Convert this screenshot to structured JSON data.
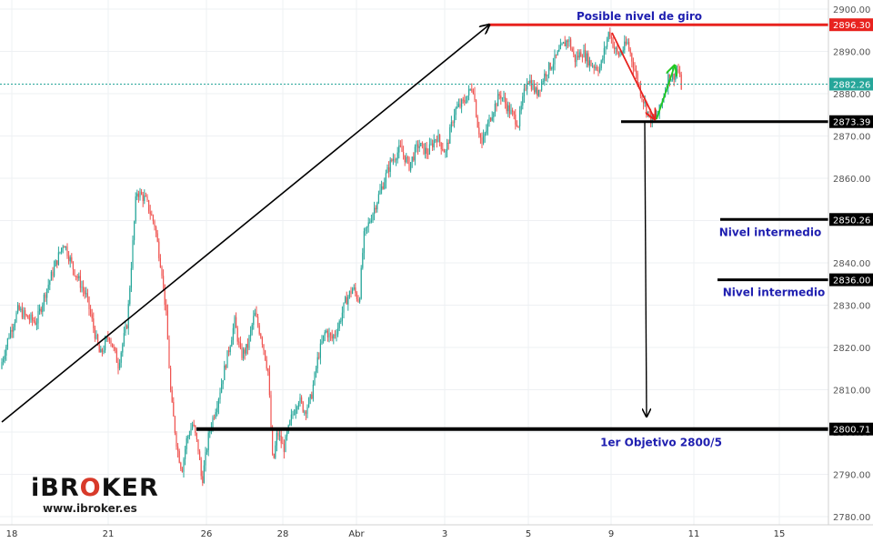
{
  "chart_data": {
    "type": "candlestick",
    "x_ticks": [
      "18",
      "21",
      "26",
      "28",
      "Abr",
      "3",
      "5",
      "9",
      "11",
      "15"
    ],
    "y_ticks": [
      "2900.00",
      "2890.00",
      "2880.00",
      "2870.00",
      "2860.00",
      "2850.00",
      "2840.00",
      "2830.00",
      "2820.00",
      "2810.00",
      "2800.00",
      "2790.00",
      "2780.00"
    ],
    "ylim": [
      2780,
      2900
    ],
    "grid": true,
    "price_series": [
      [
        0,
        2815
      ],
      [
        10,
        2823
      ],
      [
        20,
        2829
      ],
      [
        30,
        2827
      ],
      [
        40,
        2826
      ],
      [
        50,
        2833
      ],
      [
        60,
        2839
      ],
      [
        70,
        2845
      ],
      [
        80,
        2839
      ],
      [
        95,
        2832
      ],
      [
        110,
        2818
      ],
      [
        120,
        2823
      ],
      [
        130,
        2816
      ],
      [
        140,
        2826
      ],
      [
        150,
        2857
      ],
      [
        160,
        2855
      ],
      [
        170,
        2849
      ],
      [
        178,
        2838
      ],
      [
        183,
        2827
      ],
      [
        188,
        2808
      ],
      [
        195,
        2796
      ],
      [
        200,
        2791
      ],
      [
        205,
        2798
      ],
      [
        212,
        2802
      ],
      [
        218,
        2796
      ],
      [
        222,
        2788
      ],
      [
        230,
        2800
      ],
      [
        240,
        2808
      ],
      [
        250,
        2818
      ],
      [
        258,
        2826
      ],
      [
        265,
        2818
      ],
      [
        272,
        2820
      ],
      [
        280,
        2828
      ],
      [
        288,
        2822
      ],
      [
        295,
        2814
      ],
      [
        300,
        2792
      ],
      [
        305,
        2800
      ],
      [
        312,
        2796
      ],
      [
        320,
        2803
      ],
      [
        328,
        2808
      ],
      [
        335,
        2805
      ],
      [
        342,
        2808
      ],
      [
        350,
        2818
      ],
      [
        358,
        2824
      ],
      [
        365,
        2822
      ],
      [
        372,
        2825
      ],
      [
        380,
        2831
      ],
      [
        388,
        2834
      ],
      [
        395,
        2831
      ],
      [
        400,
        2846
      ],
      [
        410,
        2852
      ],
      [
        420,
        2858
      ],
      [
        430,
        2864
      ],
      [
        440,
        2867
      ],
      [
        450,
        2863
      ],
      [
        460,
        2868
      ],
      [
        470,
        2866
      ],
      [
        480,
        2870
      ],
      [
        490,
        2866
      ],
      [
        500,
        2876
      ],
      [
        510,
        2878
      ],
      [
        520,
        2882
      ],
      [
        525,
        2873
      ],
      [
        530,
        2868
      ],
      [
        540,
        2875
      ],
      [
        550,
        2880
      ],
      [
        560,
        2876
      ],
      [
        570,
        2873
      ],
      [
        580,
        2884
      ],
      [
        590,
        2880
      ],
      [
        600,
        2885
      ],
      [
        610,
        2888
      ],
      [
        618,
        2891
      ],
      [
        625,
        2893
      ],
      [
        632,
        2888
      ],
      [
        640,
        2890
      ],
      [
        650,
        2887
      ],
      [
        660,
        2886
      ],
      [
        670,
        2895
      ],
      [
        675,
        2891
      ],
      [
        680,
        2889
      ],
      [
        690,
        2892
      ],
      [
        695,
        2888
      ],
      [
        700,
        2884
      ],
      [
        705,
        2880
      ],
      [
        710,
        2877
      ],
      [
        715,
        2874
      ],
      [
        720,
        2874
      ],
      [
        725,
        2876
      ],
      [
        730,
        2880
      ],
      [
        735,
        2884
      ],
      [
        740,
        2884
      ],
      [
        745,
        2886
      ],
      [
        750,
        2881
      ]
    ],
    "levels": [
      {
        "label": "2896.30",
        "value": 2896.3,
        "color": "#e8231f"
      },
      {
        "label": "2882.26",
        "value": 2882.26,
        "color": "#26a69a"
      },
      {
        "label": "2873.39",
        "value": 2873.39,
        "color": "#000000"
      },
      {
        "label": "2850.26",
        "value": 2850.26,
        "color": "#000000"
      },
      {
        "label": "2836.00",
        "value": 2836.0,
        "color": "#000000"
      },
      {
        "label": "2800.71",
        "value": 2800.71,
        "color": "#000000"
      }
    ],
    "annotations": [
      {
        "text": "Posible nivel de giro",
        "level": 2896.3
      },
      {
        "text": "Nivel intermedio",
        "level": 2850.26
      },
      {
        "text": "Nivel intermedio",
        "level": 2836.0
      },
      {
        "text": "1er Objetivo 2800/5",
        "level": 2800.71
      }
    ],
    "colors": {
      "up": "#26a69a",
      "down": "#ef5350",
      "annotation_text": "#1f1fb0"
    }
  },
  "branding": {
    "logo_pre": "iBR",
    "logo_accent": "O",
    "logo_post": "KER",
    "url": "www.ibroker.es"
  }
}
